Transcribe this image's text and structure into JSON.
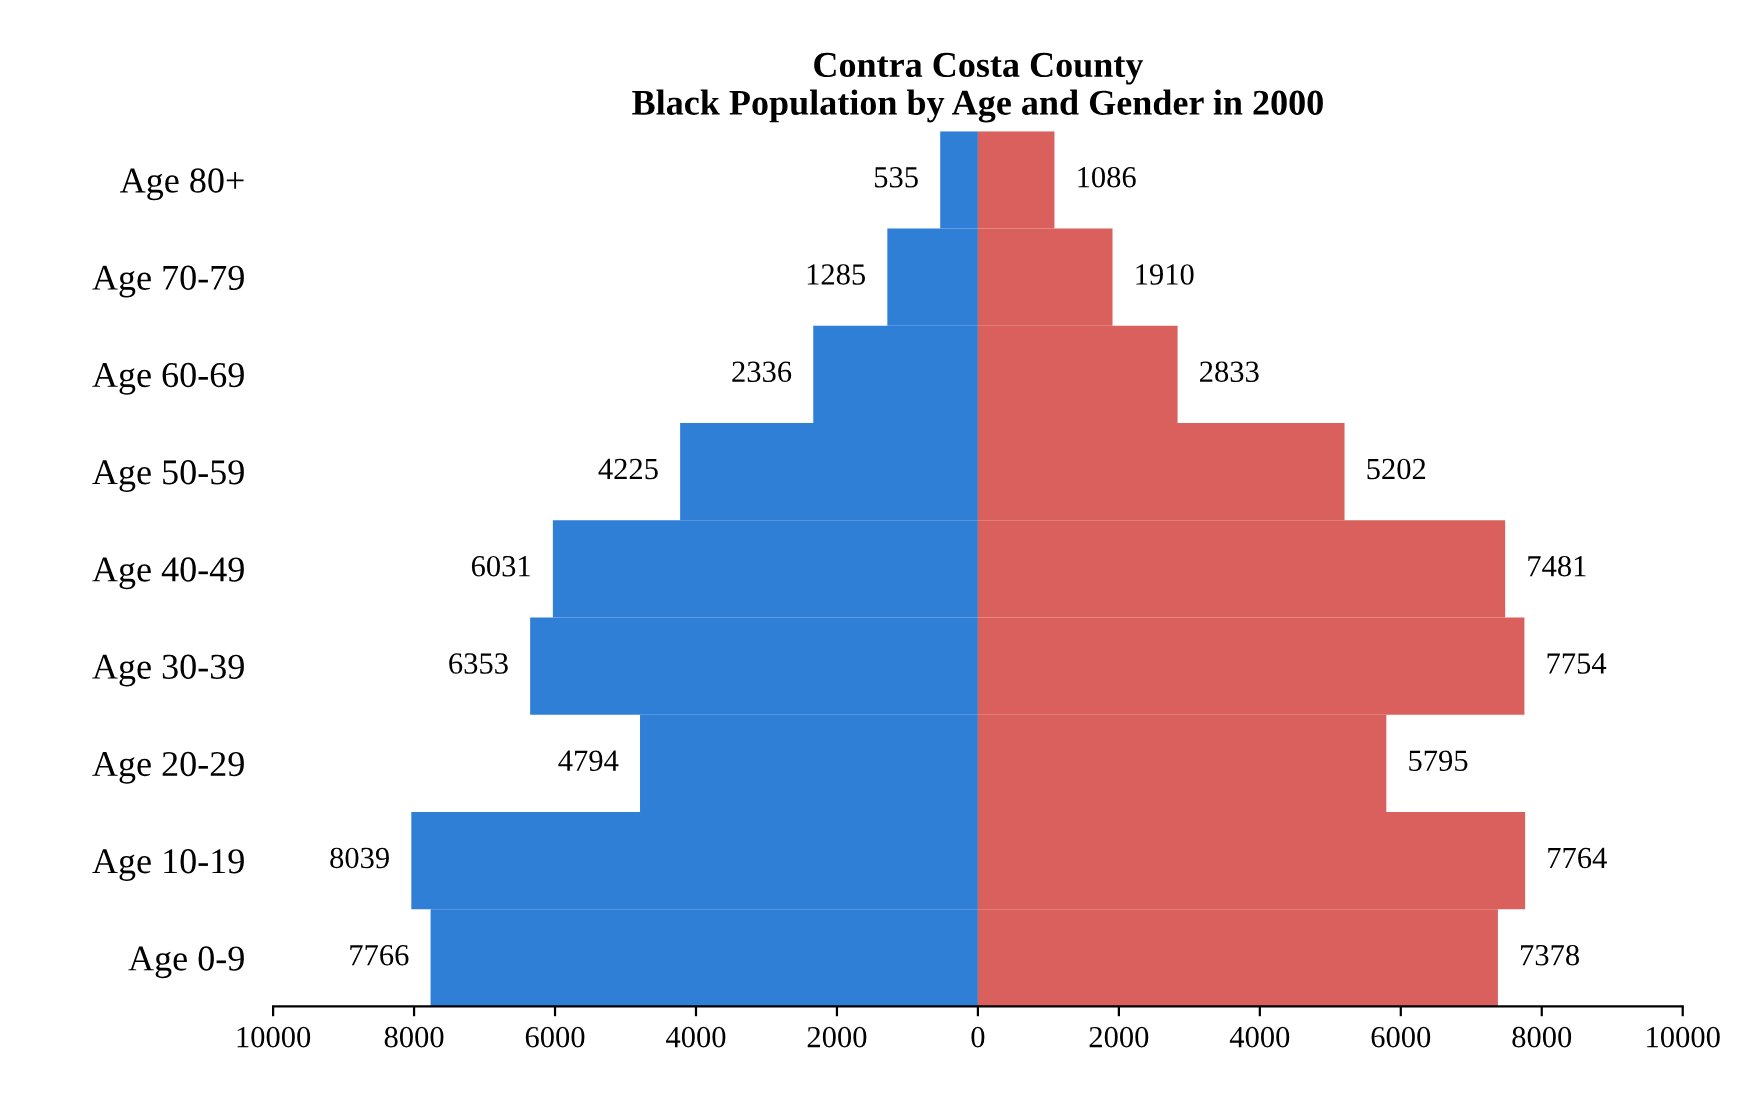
{
  "chart_data": {
    "type": "bar",
    "orientation": "horizontal",
    "title": "Contra Costa County\nBlack Population by Age and Gender in 2000",
    "categories": [
      "Age 80+",
      "Age 70-79",
      "Age 60-69",
      "Age 50-59",
      "Age 40-49",
      "Age 30-39",
      "Age 20-29",
      "Age 10-19",
      "Age 0-9"
    ],
    "series": [
      {
        "color": "#2f7fd6",
        "base": [
          -535,
          -1285,
          -2336,
          -4225,
          -6031,
          -6353,
          -4794,
          -8039,
          -7766
        ],
        "values": [
          535,
          1285,
          2336,
          4225,
          6031,
          6353,
          4794,
          8039,
          7766
        ],
        "value_labels": [
          "535",
          "1285",
          "2336",
          "4225",
          "6031",
          "6353",
          "4794",
          "8039",
          "7766"
        ]
      },
      {
        "color": "#d9605c",
        "values": [
          1086,
          1910,
          2833,
          5202,
          7481,
          7754,
          5795,
          7764,
          7378
        ],
        "value_labels": [
          "1086",
          "1910",
          "2833",
          "5202",
          "7481",
          "7754",
          "5795",
          "7764",
          "7378"
        ]
      }
    ],
    "xlim": [
      -10000,
      10000
    ],
    "xticks": [
      {
        "value": -10000,
        "label": "10000"
      },
      {
        "value": -8000,
        "label": "8000"
      },
      {
        "value": -6000,
        "label": "6000"
      },
      {
        "value": -4000,
        "label": "4000"
      },
      {
        "value": -2000,
        "label": "2000"
      },
      0,
      2000,
      4000,
      6000,
      8000,
      10000
    ],
    "grid": false,
    "legend": false
  }
}
